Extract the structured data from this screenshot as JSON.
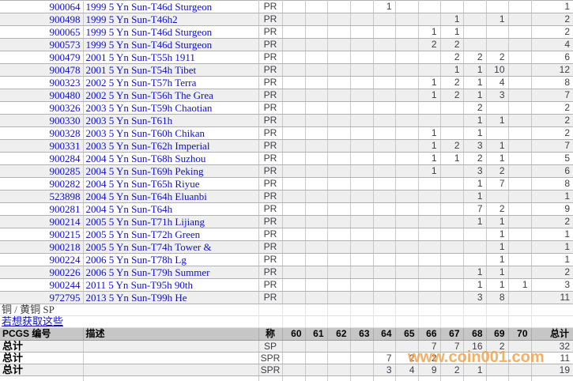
{
  "watermark": {
    "text": "www.coin001.com",
    "color": "#f29d46"
  },
  "colors": {
    "link_blue": "#0f0fc4",
    "stripe_gray": "#efefef",
    "header_bg": "#c6c6c6",
    "value_text": "#3d3d46",
    "border_dark": "#b2b2b2",
    "border_light": "#e4e4e4"
  },
  "grade_columns": [
    "60",
    "61",
    "62",
    "63",
    "64",
    "65",
    "66",
    "67",
    "68",
    "69",
    "70"
  ],
  "top_table": {
    "rows": [
      {
        "pcgs_no": "900064",
        "description": "1999 5 Yn Sun-T46d Sturgeon",
        "designation": "PR",
        "grades": {
          "64": 1
        },
        "total": 1
      },
      {
        "pcgs_no": "900498",
        "description": "1999 5 Yn Sun-T46h2",
        "designation": "PR",
        "grades": {
          "67": 1,
          "69": 1
        },
        "total": 2
      },
      {
        "pcgs_no": "900065",
        "description": "1999 5 Yn Sun-T46d Sturgeon",
        "designation": "PR",
        "grades": {
          "66": 1,
          "67": 1
        },
        "total": 2
      },
      {
        "pcgs_no": "900573",
        "description": "1999 5 Yn Sun-T46d Sturgeon",
        "designation": "PR",
        "grades": {
          "66": 2,
          "67": 2
        },
        "total": 4
      },
      {
        "pcgs_no": "900479",
        "description": "2001 5 Yn Sun-T55h 1911",
        "designation": "PR",
        "grades": {
          "67": 2,
          "68": 2,
          "69": 2
        },
        "total": 6
      },
      {
        "pcgs_no": "900478",
        "description": "2001 5 Yn Sun-T54h Tibet",
        "designation": "PR",
        "grades": {
          "67": 1,
          "68": 1,
          "69": 10
        },
        "total": 12
      },
      {
        "pcgs_no": "900323",
        "description": "2002 5 Yn Sun-T57h Terra",
        "designation": "PR",
        "grades": {
          "66": 1,
          "67": 2,
          "68": 1,
          "69": 4
        },
        "total": 8
      },
      {
        "pcgs_no": "900480",
        "description": "2002 5 Yn Sun-T56h The Grea",
        "designation": "PR",
        "grades": {
          "66": 1,
          "67": 2,
          "68": 1,
          "69": 3
        },
        "total": 7
      },
      {
        "pcgs_no": "900326",
        "description": "2003 5 Yn Sun-T59h Chaotian",
        "designation": "PR",
        "grades": {
          "68": 2
        },
        "total": 2
      },
      {
        "pcgs_no": "900330",
        "description": "2003 5 Yn Sun-T61h",
        "designation": "PR",
        "grades": {
          "68": 1,
          "69": 1
        },
        "total": 2
      },
      {
        "pcgs_no": "900328",
        "description": "2003 5 Yn Sun-T60h Chikan",
        "designation": "PR",
        "grades": {
          "66": 1,
          "68": 1
        },
        "total": 2
      },
      {
        "pcgs_no": "900331",
        "description": "2003 5 Yn Sun-T62h Imperial",
        "designation": "PR",
        "grades": {
          "66": 1,
          "67": 2,
          "68": 3,
          "69": 1
        },
        "total": 7
      },
      {
        "pcgs_no": "900284",
        "description": "2004 5 Yn Sun-T68h Suzhou",
        "designation": "PR",
        "grades": {
          "66": 1,
          "67": 1,
          "68": 2,
          "69": 1
        },
        "total": 5
      },
      {
        "pcgs_no": "900285",
        "description": "2004 5 Yn Sun-T69h Peking",
        "designation": "PR",
        "grades": {
          "66": 1,
          "68": 3,
          "69": 2
        },
        "total": 6
      },
      {
        "pcgs_no": "900282",
        "description": "2004 5 Yn Sun-T65h Riyue",
        "designation": "PR",
        "grades": {
          "68": 1,
          "69": 7
        },
        "total": 8
      },
      {
        "pcgs_no": "523898",
        "description": "2004 5 Yn Sun-T64h Eluanbi",
        "designation": "PR",
        "grades": {
          "68": 1
        },
        "total": 1
      },
      {
        "pcgs_no": "900281",
        "description": "2004 5 Yn Sun-T64h",
        "designation": "PR",
        "grades": {
          "68": 7,
          "69": 2
        },
        "total": 9
      },
      {
        "pcgs_no": "900214",
        "description": "2005 5 Yn Sun-T71h Lijiang",
        "designation": "PR",
        "grades": {
          "68": 1,
          "69": 1
        },
        "total": 2
      },
      {
        "pcgs_no": "900215",
        "description": "2005 5 Yn Sun-T72h Green",
        "designation": "PR",
        "grades": {
          "69": 1
        },
        "total": 1
      },
      {
        "pcgs_no": "900218",
        "description": "2005 5 Yn Sun-T74h Tower &",
        "designation": "PR",
        "grades": {
          "69": 1
        },
        "total": 1
      },
      {
        "pcgs_no": "900224",
        "description": "2006 5 Yn Sun-T78h Lg",
        "designation": "PR",
        "grades": {
          "69": 1
        },
        "total": 1
      },
      {
        "pcgs_no": "900226",
        "description": "2006 5 Yn Sun-T79h Summer",
        "designation": "PR",
        "grades": {
          "68": 1,
          "69": 1
        },
        "total": 2
      },
      {
        "pcgs_no": "900244",
        "description": "2011 5 Yn Sun-T95h 90th",
        "designation": "PR",
        "grades": {
          "68": 1,
          "69": 1,
          "70": 1
        },
        "total": 3
      },
      {
        "pcgs_no": "972795",
        "description": "2013 5 Yn Sun-T99h He",
        "designation": "PR",
        "grades": {
          "68": 3,
          "69": 8
        },
        "total": 11
      }
    ]
  },
  "section": {
    "title": "铜 / 黄铜  SP",
    "link_text": "若想获取这些",
    "header": {
      "pcgs_no": "PCGS 编号",
      "description": "描述",
      "designation": "称",
      "total": "总计"
    },
    "total_rows": [
      {
        "label": "总计",
        "designation": "SP",
        "grades": {
          "66": 7,
          "67": 7,
          "68": 16,
          "69": 2
        },
        "total": 32
      },
      {
        "label": "总计",
        "designation": "SPR",
        "grades": {
          "64": 7,
          "65": 2,
          "66": 2
        },
        "total": 11
      },
      {
        "label": "总计",
        "designation": "SPR",
        "grades": {
          "64": 3,
          "65": 4,
          "66": 9,
          "67": 2,
          "68": 1
        },
        "total": 19
      }
    ]
  }
}
